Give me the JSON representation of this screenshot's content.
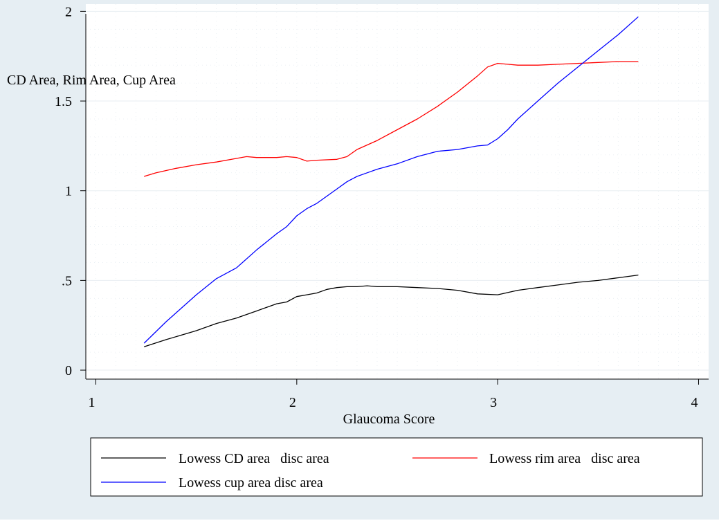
{
  "chart_data": {
    "type": "line",
    "title": "",
    "xlabel": "Glaucoma Score",
    "ylabel": "CD Area, Rim Area, Cup Area",
    "xlim": [
      0.95,
      4.05
    ],
    "ylim": [
      -0.05,
      2.04
    ],
    "xticks": [
      1,
      2,
      3,
      4
    ],
    "xtick_labels": [
      "1",
      "2",
      "3",
      "4"
    ],
    "yticks": [
      0,
      0.5,
      1,
      1.5,
      2
    ],
    "ytick_labels": [
      "0",
      ".5",
      "1",
      "1.5",
      "2"
    ],
    "grid": true,
    "legend_position": "bottom",
    "colors": {
      "background": "#e6eef3",
      "plot_background": "#ffffff",
      "grid": "#e8eef2"
    },
    "series": [
      {
        "name": "Lowess CD area   disc area",
        "color": "#000000",
        "points": [
          [
            1.24,
            0.13
          ],
          [
            1.35,
            0.17
          ],
          [
            1.5,
            0.22
          ],
          [
            1.6,
            0.26
          ],
          [
            1.7,
            0.29
          ],
          [
            1.8,
            0.33
          ],
          [
            1.9,
            0.37
          ],
          [
            1.95,
            0.38
          ],
          [
            2.0,
            0.41
          ],
          [
            2.05,
            0.42
          ],
          [
            2.1,
            0.43
          ],
          [
            2.15,
            0.45
          ],
          [
            2.2,
            0.46
          ],
          [
            2.25,
            0.465
          ],
          [
            2.3,
            0.465
          ],
          [
            2.35,
            0.47
          ],
          [
            2.4,
            0.465
          ],
          [
            2.5,
            0.465
          ],
          [
            2.6,
            0.46
          ],
          [
            2.7,
            0.455
          ],
          [
            2.8,
            0.445
          ],
          [
            2.9,
            0.425
          ],
          [
            3.0,
            0.42
          ],
          [
            3.1,
            0.445
          ],
          [
            3.2,
            0.46
          ],
          [
            3.3,
            0.475
          ],
          [
            3.4,
            0.49
          ],
          [
            3.5,
            0.5
          ],
          [
            3.6,
            0.515
          ],
          [
            3.7,
            0.53
          ]
        ]
      },
      {
        "name": "Lowess rim area   disc area",
        "color": "#ff0000",
        "points": [
          [
            1.24,
            1.08
          ],
          [
            1.3,
            1.1
          ],
          [
            1.4,
            1.125
          ],
          [
            1.5,
            1.145
          ],
          [
            1.6,
            1.16
          ],
          [
            1.7,
            1.18
          ],
          [
            1.75,
            1.19
          ],
          [
            1.8,
            1.185
          ],
          [
            1.9,
            1.185
          ],
          [
            1.95,
            1.19
          ],
          [
            2.0,
            1.185
          ],
          [
            2.05,
            1.165
          ],
          [
            2.1,
            1.17
          ],
          [
            2.2,
            1.175
          ],
          [
            2.25,
            1.19
          ],
          [
            2.3,
            1.23
          ],
          [
            2.4,
            1.28
          ],
          [
            2.5,
            1.34
          ],
          [
            2.6,
            1.4
          ],
          [
            2.7,
            1.47
          ],
          [
            2.8,
            1.55
          ],
          [
            2.9,
            1.64
          ],
          [
            2.95,
            1.69
          ],
          [
            3.0,
            1.71
          ],
          [
            3.05,
            1.705
          ],
          [
            3.1,
            1.7
          ],
          [
            3.2,
            1.7
          ],
          [
            3.3,
            1.705
          ],
          [
            3.4,
            1.71
          ],
          [
            3.5,
            1.715
          ],
          [
            3.6,
            1.72
          ],
          [
            3.7,
            1.72
          ]
        ]
      },
      {
        "name": "Lowess cup area disc area",
        "color": "#0000ff",
        "points": [
          [
            1.24,
            0.15
          ],
          [
            1.35,
            0.27
          ],
          [
            1.5,
            0.42
          ],
          [
            1.6,
            0.51
          ],
          [
            1.7,
            0.57
          ],
          [
            1.8,
            0.67
          ],
          [
            1.9,
            0.76
          ],
          [
            1.95,
            0.8
          ],
          [
            2.0,
            0.86
          ],
          [
            2.05,
            0.9
          ],
          [
            2.1,
            0.93
          ],
          [
            2.15,
            0.97
          ],
          [
            2.2,
            1.01
          ],
          [
            2.25,
            1.05
          ],
          [
            2.3,
            1.08
          ],
          [
            2.35,
            1.1
          ],
          [
            2.4,
            1.12
          ],
          [
            2.5,
            1.15
          ],
          [
            2.6,
            1.19
          ],
          [
            2.7,
            1.22
          ],
          [
            2.8,
            1.23
          ],
          [
            2.9,
            1.25
          ],
          [
            2.95,
            1.255
          ],
          [
            3.0,
            1.29
          ],
          [
            3.05,
            1.34
          ],
          [
            3.1,
            1.4
          ],
          [
            3.2,
            1.5
          ],
          [
            3.3,
            1.6
          ],
          [
            3.4,
            1.69
          ],
          [
            3.5,
            1.78
          ],
          [
            3.6,
            1.87
          ],
          [
            3.7,
            1.97
          ]
        ]
      }
    ]
  }
}
